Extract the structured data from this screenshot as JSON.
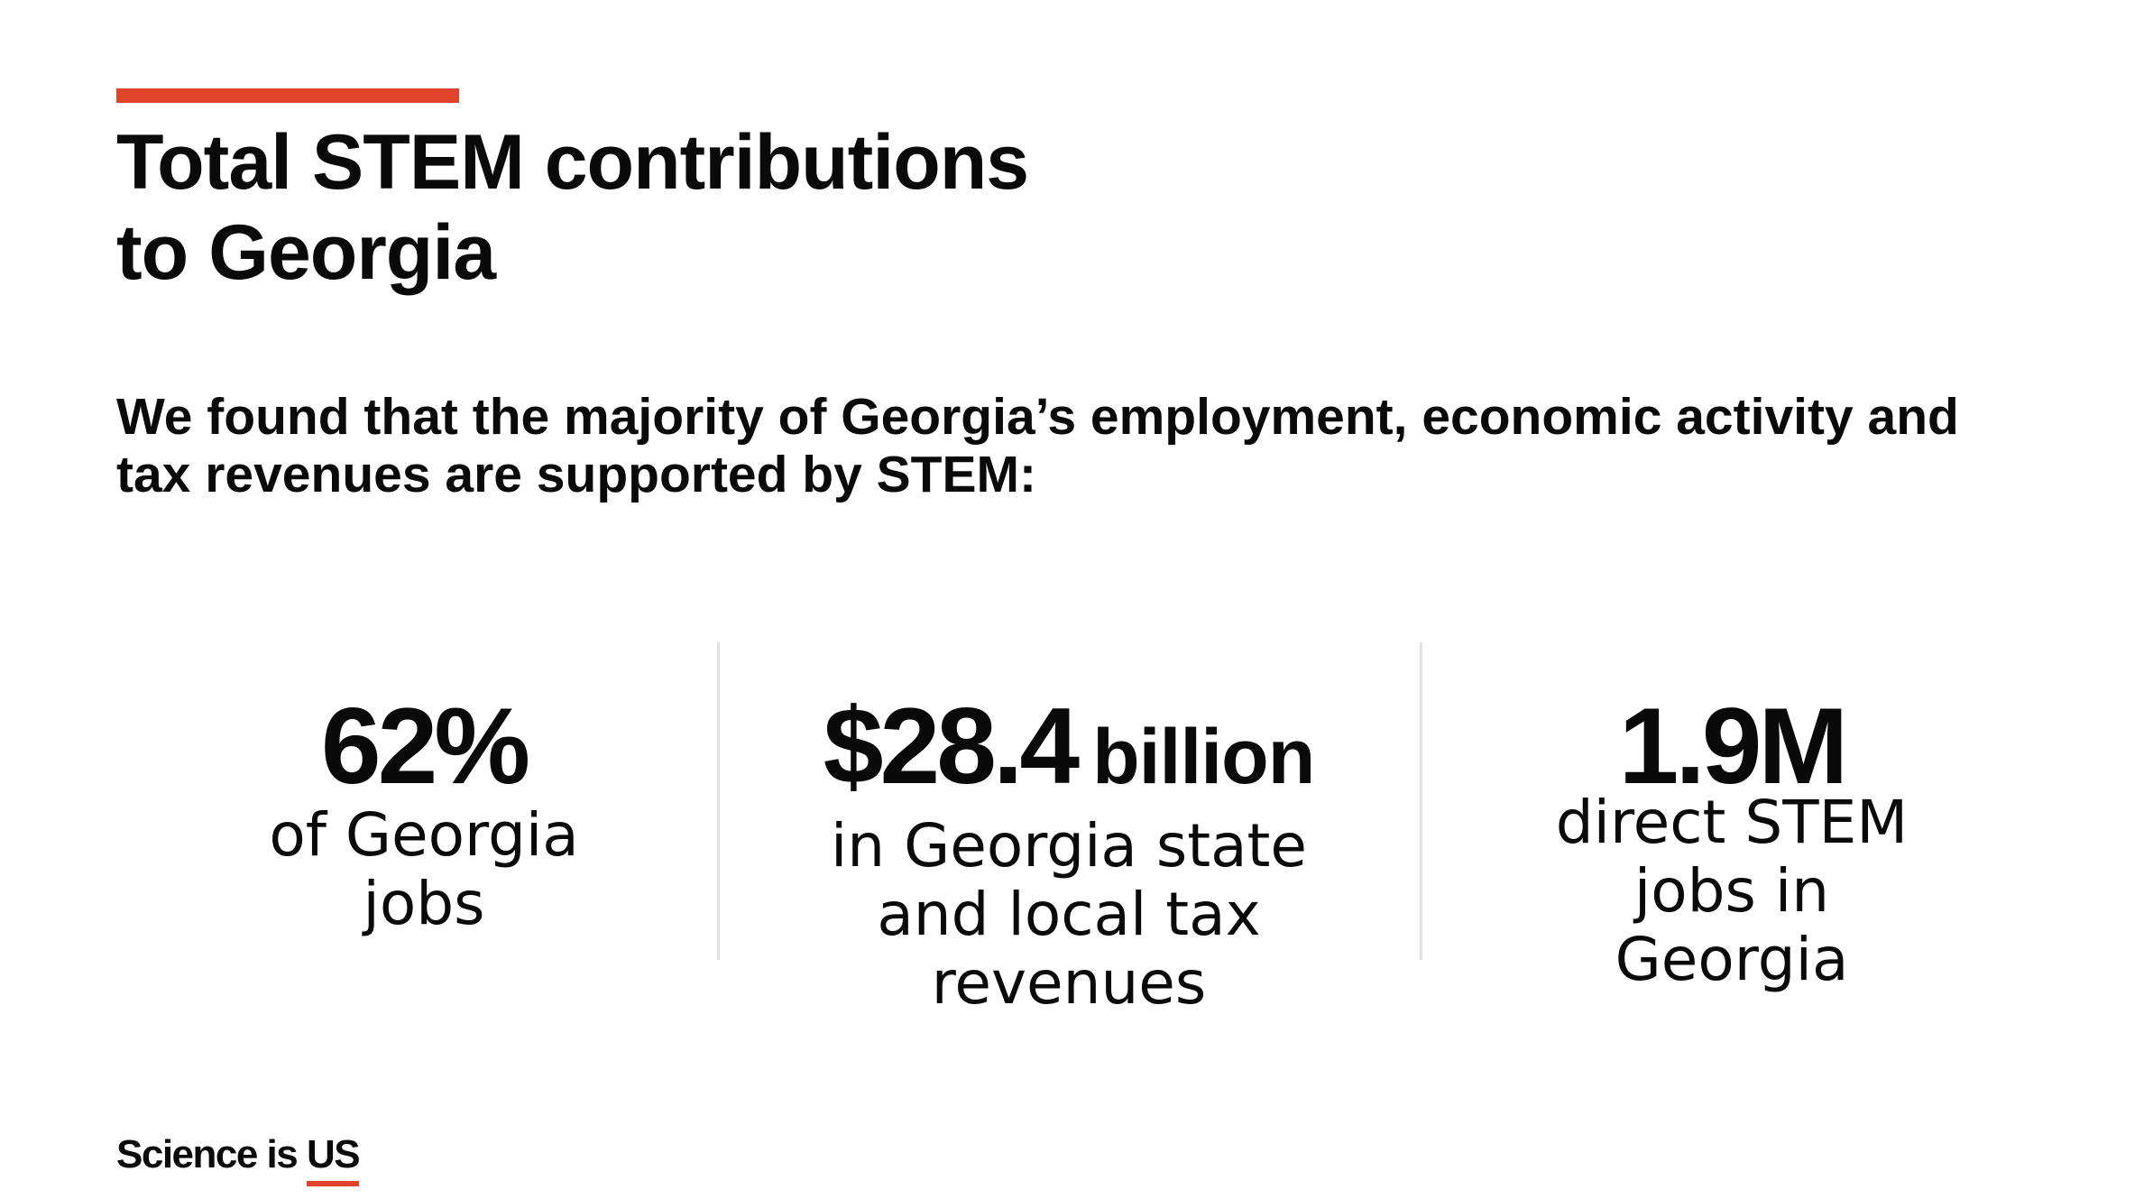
{
  "title": {
    "line1": "Total STEM contributions",
    "line2": "to Georgia"
  },
  "intro": {
    "line1": "We found that the majority of Georgia’s employment, economic activity and",
    "line2": "tax revenues are supported by STEM:"
  },
  "stats": [
    {
      "value": "62%",
      "unit": "",
      "desc": [
        "of Georgia",
        "jobs"
      ]
    },
    {
      "value": "$28.4",
      "unit": "billion",
      "desc": [
        "in Georgia state",
        "and local tax",
        "revenues"
      ]
    },
    {
      "value": "1.9M",
      "unit": "",
      "desc": [
        "direct STEM",
        "jobs in",
        "Georgia"
      ]
    }
  ],
  "logo": {
    "prefix": "Science is ",
    "emphasis": "US"
  },
  "colors": {
    "accent": "#e2432b",
    "text": "#0a0a0a",
    "divider": "#e2e2e2"
  }
}
